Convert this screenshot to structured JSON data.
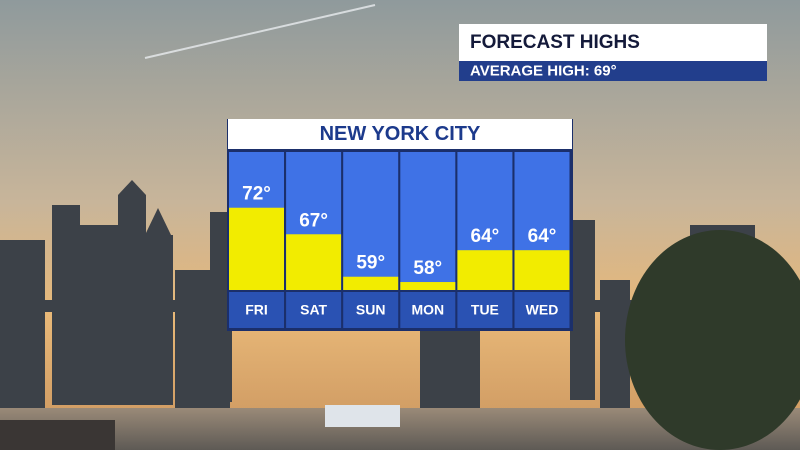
{
  "header": {
    "title": "FORECAST HIGHS",
    "subtitle": "AVERAGE HIGH: 69°"
  },
  "chart_data": {
    "type": "bar",
    "title": "NEW YORK CITY",
    "categories": [
      "FRI",
      "SAT",
      "SUN",
      "MON",
      "TUE",
      "WED"
    ],
    "values": [
      72,
      67,
      59,
      58,
      64,
      64
    ],
    "value_labels": [
      "72°",
      "67°",
      "59°",
      "58°",
      "64°",
      "64°"
    ],
    "color": "#f2ec00",
    "ylim": [
      56.5,
      82.5
    ]
  }
}
